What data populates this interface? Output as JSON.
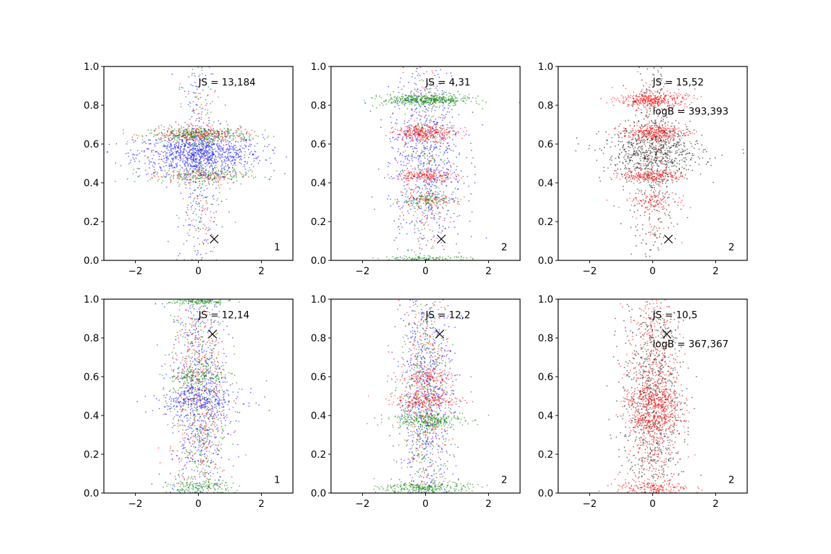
{
  "chart_data": [
    {
      "type": "scatter",
      "annotation": "JS = 13,184",
      "extra": "",
      "corner_label": "1",
      "marker_x": [
        0.5,
        0.11
      ],
      "colors": [
        "#0000ff",
        "#ff0000",
        "#008000"
      ],
      "clusters": [
        {
          "y": 0.55,
          "sy": 0.05,
          "sx": 1.0,
          "n": 900,
          "c": 0
        },
        {
          "y": 0.65,
          "sy": 0.02,
          "sx": 0.8,
          "n": 350,
          "c": 2
        },
        {
          "y": 0.65,
          "sy": 0.02,
          "sx": 0.8,
          "n": 200,
          "c": 1
        },
        {
          "y": 0.44,
          "sy": 0.02,
          "sx": 0.8,
          "n": 200,
          "c": 2
        },
        {
          "y": 0.44,
          "sy": 0.02,
          "sx": 0.8,
          "n": 100,
          "c": 1
        },
        {
          "y": 0.5,
          "sy": 0.3,
          "sx": 0.35,
          "n": 250,
          "c": 0
        },
        {
          "y": 0.5,
          "sy": 0.3,
          "sx": 0.35,
          "n": 150,
          "c": 2
        },
        {
          "y": 0.5,
          "sy": 0.3,
          "sx": 0.35,
          "n": 120,
          "c": 1
        }
      ]
    },
    {
      "type": "scatter",
      "annotation": "JS = 4,31",
      "extra": "",
      "corner_label": "2",
      "marker_x": [
        0.5,
        0.11
      ],
      "colors": [
        "#0000ff",
        "#ff0000",
        "#008000"
      ],
      "clusters": [
        {
          "y": 0.55,
          "sy": 0.25,
          "sx": 0.6,
          "n": 700,
          "c": 0
        },
        {
          "y": 0.83,
          "sy": 0.015,
          "sx": 0.7,
          "n": 450,
          "c": 2
        },
        {
          "y": 0.66,
          "sy": 0.02,
          "sx": 0.5,
          "n": 300,
          "c": 1
        },
        {
          "y": 0.44,
          "sy": 0.015,
          "sx": 0.5,
          "n": 180,
          "c": 1
        },
        {
          "y": 0.31,
          "sy": 0.015,
          "sx": 0.5,
          "n": 100,
          "c": 2
        },
        {
          "y": 0.31,
          "sy": 0.015,
          "sx": 0.5,
          "n": 80,
          "c": 1
        },
        {
          "y": 0.01,
          "sy": 0.008,
          "sx": 0.7,
          "n": 100,
          "c": 2
        },
        {
          "y": 0.5,
          "sy": 0.3,
          "sx": 0.35,
          "n": 150,
          "c": 2
        },
        {
          "y": 0.5,
          "sy": 0.3,
          "sx": 0.35,
          "n": 150,
          "c": 1
        }
      ]
    },
    {
      "type": "scatter",
      "annotation": "JS = 15,52",
      "extra": "logB = 393,393",
      "corner_label": "2",
      "marker_x": [
        0.5,
        0.11
      ],
      "colors": [
        "#000000",
        "#ff0000"
      ],
      "clusters": [
        {
          "y": 0.55,
          "sy": 0.07,
          "sx": 0.8,
          "n": 600,
          "c": 0
        },
        {
          "y": 0.55,
          "sy": 0.28,
          "sx": 0.4,
          "n": 350,
          "c": 0
        },
        {
          "y": 0.83,
          "sy": 0.02,
          "sx": 0.55,
          "n": 350,
          "c": 1
        },
        {
          "y": 0.66,
          "sy": 0.02,
          "sx": 0.5,
          "n": 300,
          "c": 1
        },
        {
          "y": 0.44,
          "sy": 0.015,
          "sx": 0.5,
          "n": 200,
          "c": 1
        },
        {
          "y": 0.31,
          "sy": 0.02,
          "sx": 0.5,
          "n": 100,
          "c": 1
        },
        {
          "y": 0.5,
          "sy": 0.3,
          "sx": 0.3,
          "n": 150,
          "c": 1
        }
      ]
    },
    {
      "type": "scatter",
      "annotation": "JS = 12,14",
      "extra": "",
      "corner_label": "1",
      "marker_x": [
        0.45,
        0.82
      ],
      "colors": [
        "#0000ff",
        "#ff0000",
        "#008000"
      ],
      "clusters": [
        {
          "y": 0.5,
          "sy": 0.3,
          "sx": 0.45,
          "n": 600,
          "c": 0
        },
        {
          "y": 0.5,
          "sy": 0.3,
          "sx": 0.45,
          "n": 400,
          "c": 2
        },
        {
          "y": 0.5,
          "sy": 0.3,
          "sx": 0.45,
          "n": 400,
          "c": 1
        },
        {
          "y": 0.48,
          "sy": 0.03,
          "sx": 0.7,
          "n": 200,
          "c": 0
        },
        {
          "y": 0.6,
          "sy": 0.02,
          "sx": 0.5,
          "n": 120,
          "c": 2
        },
        {
          "y": 0.99,
          "sy": 0.01,
          "sx": 0.5,
          "n": 120,
          "c": 2
        },
        {
          "y": 0.03,
          "sy": 0.02,
          "sx": 0.5,
          "n": 150,
          "c": 2
        }
      ]
    },
    {
      "type": "scatter",
      "annotation": "JS = 12,2",
      "extra": "",
      "corner_label": "2",
      "marker_x": [
        0.45,
        0.82
      ],
      "colors": [
        "#0000ff",
        "#ff0000",
        "#008000"
      ],
      "clusters": [
        {
          "y": 0.5,
          "sy": 0.3,
          "sx": 0.45,
          "n": 600,
          "c": 0
        },
        {
          "y": 0.5,
          "sy": 0.3,
          "sx": 0.4,
          "n": 350,
          "c": 2
        },
        {
          "y": 0.5,
          "sy": 0.3,
          "sx": 0.4,
          "n": 350,
          "c": 1
        },
        {
          "y": 0.48,
          "sy": 0.02,
          "sx": 0.6,
          "n": 200,
          "c": 1
        },
        {
          "y": 0.38,
          "sy": 0.02,
          "sx": 0.6,
          "n": 250,
          "c": 2
        },
        {
          "y": 0.03,
          "sy": 0.015,
          "sx": 0.7,
          "n": 250,
          "c": 2
        },
        {
          "y": 0.6,
          "sy": 0.02,
          "sx": 0.4,
          "n": 100,
          "c": 1
        }
      ]
    },
    {
      "type": "scatter",
      "annotation": "JS = 10,5",
      "extra": "logB = 367,367",
      "corner_label": "2",
      "marker_x": [
        0.45,
        0.82
      ],
      "colors": [
        "#000000",
        "#ff0000"
      ],
      "clusters": [
        {
          "y": 0.5,
          "sy": 0.3,
          "sx": 0.5,
          "n": 700,
          "c": 0
        },
        {
          "y": 0.5,
          "sy": 0.3,
          "sx": 0.4,
          "n": 700,
          "c": 1
        },
        {
          "y": 0.48,
          "sy": 0.03,
          "sx": 0.45,
          "n": 200,
          "c": 1
        },
        {
          "y": 0.38,
          "sy": 0.03,
          "sx": 0.4,
          "n": 200,
          "c": 1
        },
        {
          "y": 0.03,
          "sy": 0.02,
          "sx": 0.6,
          "n": 150,
          "c": 1
        }
      ]
    }
  ],
  "axes": {
    "xlim": [
      -3,
      3
    ],
    "ylim": [
      0,
      1
    ],
    "xticks": [
      {
        "v": -2,
        "label": "−2"
      },
      {
        "v": 0,
        "label": "0"
      },
      {
        "v": 2,
        "label": "2"
      }
    ],
    "yticks": [
      {
        "v": 0,
        "label": "0.0"
      },
      {
        "v": 0.2,
        "label": "0.2"
      },
      {
        "v": 0.4,
        "label": "0.4"
      },
      {
        "v": 0.6,
        "label": "0.6"
      },
      {
        "v": 0.8,
        "label": "0.8"
      },
      {
        "v": 1,
        "label": "1.0"
      }
    ]
  }
}
